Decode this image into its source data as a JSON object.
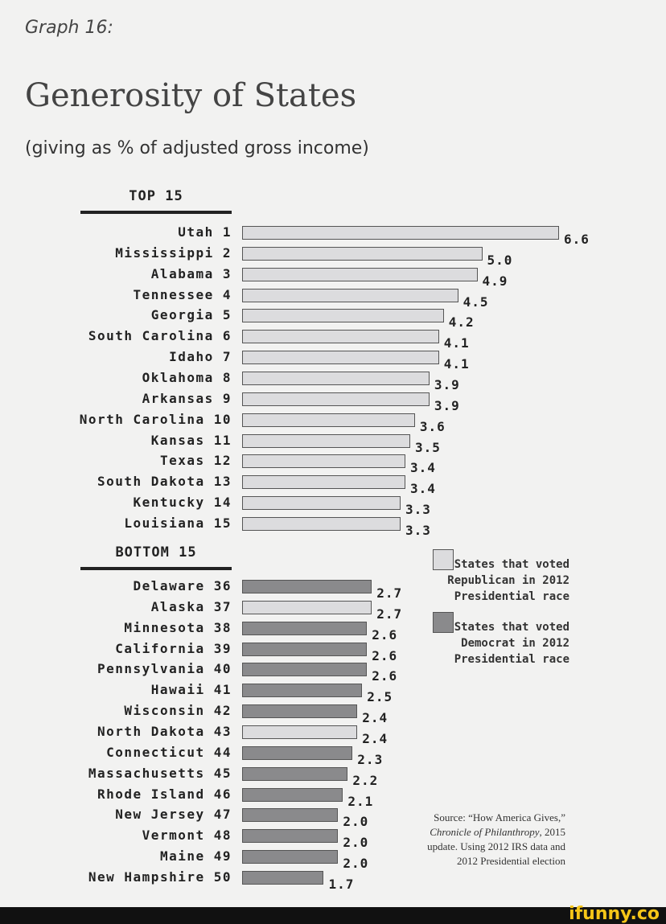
{
  "graph_label": "Graph 16:",
  "chart_data": {
    "type": "bar",
    "orientation": "horizontal",
    "title": "Generosity of States",
    "subtitle": "(giving as % of adjusted gross income)",
    "colors": {
      "republican": "#dcdcde",
      "democrat": "#8a8a8c"
    },
    "groups": [
      {
        "heading": "TOP 15",
        "rows": [
          {
            "state": "Utah",
            "rank": 1,
            "value": 6.6,
            "label": "6.6",
            "party": "republican"
          },
          {
            "state": "Mississippi",
            "rank": 2,
            "value": 5.0,
            "label": "5.0",
            "party": "republican"
          },
          {
            "state": "Alabama",
            "rank": 3,
            "value": 4.9,
            "label": "4.9",
            "party": "republican"
          },
          {
            "state": "Tennessee",
            "rank": 4,
            "value": 4.5,
            "label": "4.5",
            "party": "republican"
          },
          {
            "state": "Georgia",
            "rank": 5,
            "value": 4.2,
            "label": "4.2",
            "party": "republican"
          },
          {
            "state": "South Carolina",
            "rank": 6,
            "value": 4.1,
            "label": "4.1",
            "party": "republican"
          },
          {
            "state": "Idaho",
            "rank": 7,
            "value": 4.1,
            "label": "4.1",
            "party": "republican"
          },
          {
            "state": "Oklahoma",
            "rank": 8,
            "value": 3.9,
            "label": "3.9",
            "party": "republican"
          },
          {
            "state": "Arkansas",
            "rank": 9,
            "value": 3.9,
            "label": "3.9",
            "party": "republican"
          },
          {
            "state": "North Carolina",
            "rank": 10,
            "value": 3.6,
            "label": "3.6",
            "party": "republican"
          },
          {
            "state": "Kansas",
            "rank": 11,
            "value": 3.5,
            "label": "3.5",
            "party": "republican"
          },
          {
            "state": "Texas",
            "rank": 12,
            "value": 3.4,
            "label": "3.4",
            "party": "republican"
          },
          {
            "state": "South Dakota",
            "rank": 13,
            "value": 3.4,
            "label": "3.4",
            "party": "republican"
          },
          {
            "state": "Kentucky",
            "rank": 14,
            "value": 3.3,
            "label": "3.3",
            "party": "republican"
          },
          {
            "state": "Louisiana",
            "rank": 15,
            "value": 3.3,
            "label": "3.3",
            "party": "republican"
          }
        ]
      },
      {
        "heading": "BOTTOM 15",
        "rows": [
          {
            "state": "Delaware",
            "rank": 36,
            "value": 2.7,
            "label": "2.7",
            "party": "democrat"
          },
          {
            "state": "Alaska",
            "rank": 37,
            "value": 2.7,
            "label": "2.7",
            "party": "republican"
          },
          {
            "state": "Minnesota",
            "rank": 38,
            "value": 2.6,
            "label": "2.6",
            "party": "democrat"
          },
          {
            "state": "California",
            "rank": 39,
            "value": 2.6,
            "label": "2.6",
            "party": "democrat"
          },
          {
            "state": "Pennsylvania",
            "rank": 40,
            "value": 2.6,
            "label": "2.6",
            "party": "democrat"
          },
          {
            "state": "Hawaii",
            "rank": 41,
            "value": 2.5,
            "label": "2.5",
            "party": "democrat"
          },
          {
            "state": "Wisconsin",
            "rank": 42,
            "value": 2.4,
            "label": "2.4",
            "party": "democrat"
          },
          {
            "state": "North Dakota",
            "rank": 43,
            "value": 2.4,
            "label": "2.4",
            "party": "republican"
          },
          {
            "state": "Connecticut",
            "rank": 44,
            "value": 2.3,
            "label": "2.3",
            "party": "democrat"
          },
          {
            "state": "Massachusetts",
            "rank": 45,
            "value": 2.2,
            "label": "2.2",
            "party": "democrat"
          },
          {
            "state": "Rhode Island",
            "rank": 46,
            "value": 2.1,
            "label": "2.1",
            "party": "democrat"
          },
          {
            "state": "New Jersey",
            "rank": 47,
            "value": 2.0,
            "label": "2.0",
            "party": "democrat"
          },
          {
            "state": "Vermont",
            "rank": 48,
            "value": 2.0,
            "label": "2.0",
            "party": "democrat"
          },
          {
            "state": "Maine",
            "rank": 49,
            "value": 2.0,
            "label": "2.0",
            "party": "democrat"
          },
          {
            "state": "New Hampshire",
            "rank": 50,
            "value": 1.7,
            "label": "1.7",
            "party": "democrat"
          }
        ]
      }
    ],
    "legend": [
      {
        "party": "republican",
        "text": [
          "States that voted",
          "Republican in 2012",
          "Presidential race"
        ]
      },
      {
        "party": "democrat",
        "text": [
          "States that voted",
          "Democrat in 2012",
          "Presidential race"
        ]
      }
    ],
    "source": {
      "plain1": "Source:  “How America Gives,” ",
      "italic": "Chronicle of Philanthropy",
      "plain2": ", 2015 update. Using 2012 IRS data and 2012 Presidential election"
    }
  },
  "footer": {
    "logo": "ifunny.co"
  }
}
